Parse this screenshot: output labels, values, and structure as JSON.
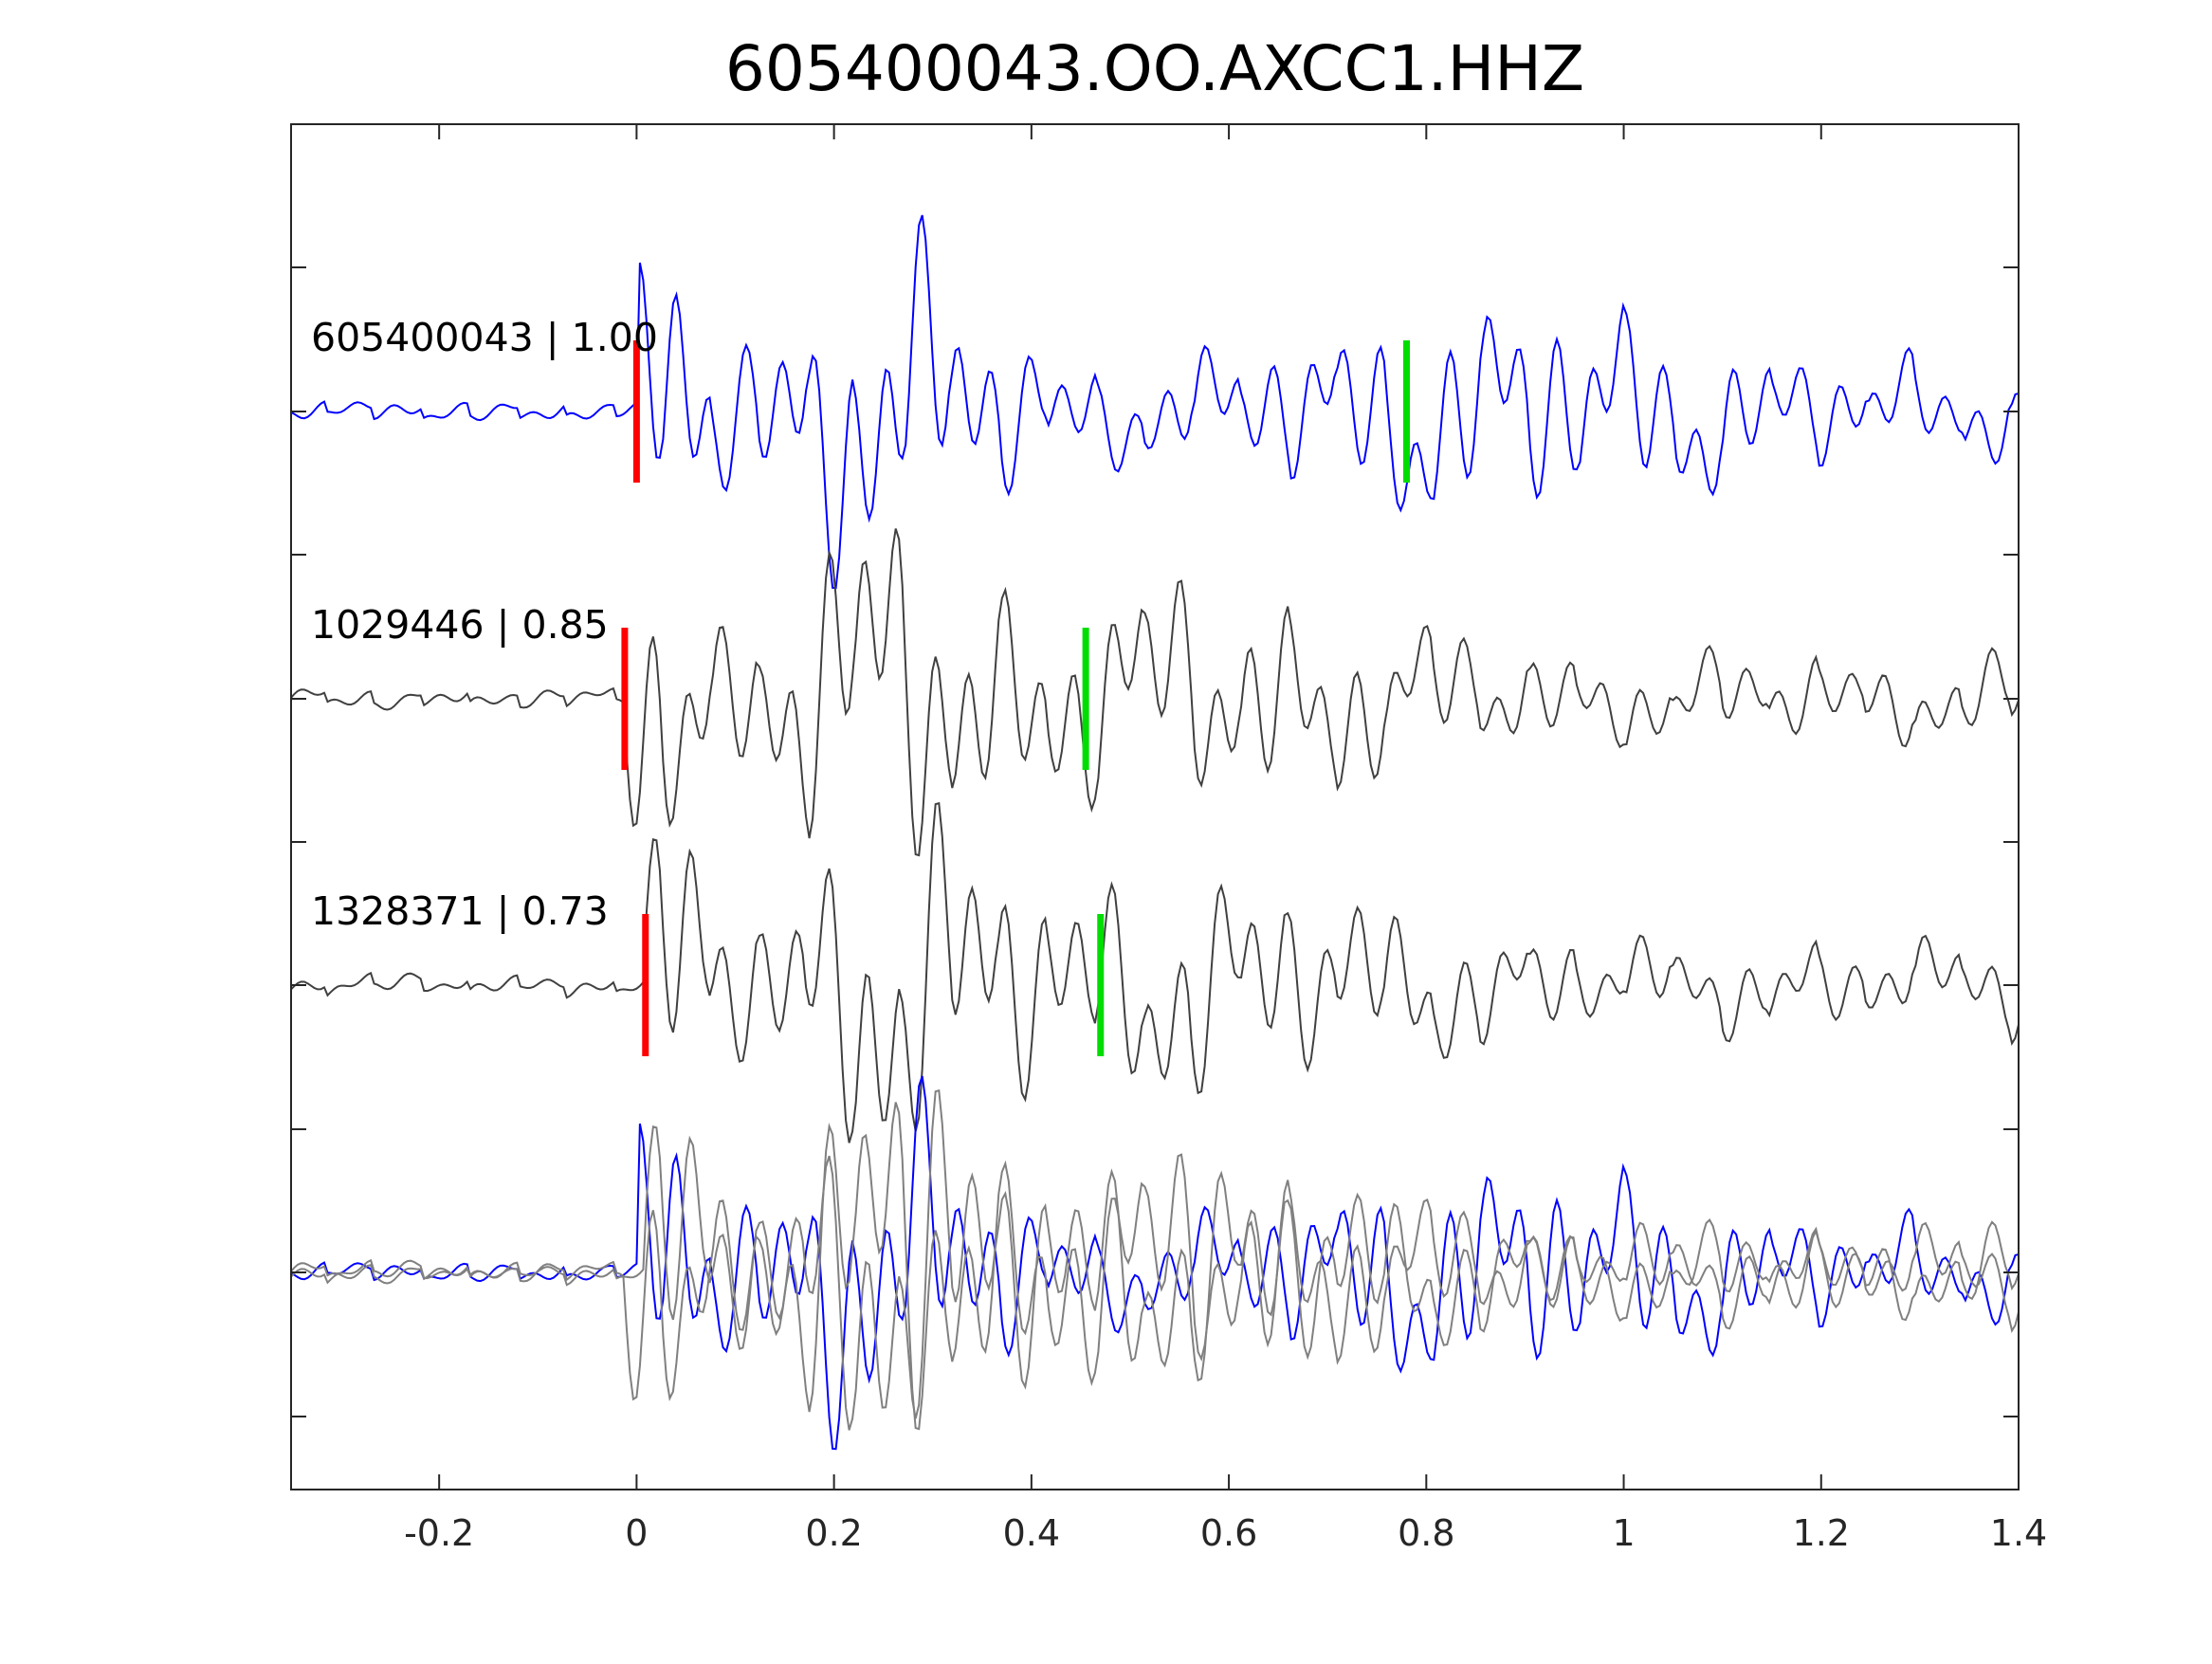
{
  "chart_data": {
    "type": "line",
    "title": "605400043.OO.AXCC1.HHZ",
    "xlabel": "",
    "ylabel": "",
    "xlim": [
      -0.35,
      1.4
    ],
    "xticks": [
      -0.2,
      0,
      0.2,
      0.4,
      0.6,
      0.8,
      1,
      1.2,
      1.4
    ],
    "xtick_labels": [
      "-0.2",
      "0",
      "0.2",
      "0.4",
      "0.6",
      "0.8",
      "1",
      "1.2",
      "1.4"
    ],
    "grid": false,
    "traces": [
      {
        "label": "605400043 | 1.00",
        "color": "#0000ff",
        "p_pick": 0.0,
        "s_pick": 0.78
      },
      {
        "label": "1029446 | 0.85",
        "color": "#404040",
        "p_pick": -0.012,
        "s_pick": 0.455
      },
      {
        "label": "1328371 | 0.73",
        "color": "#404040",
        "p_pick": 0.009,
        "s_pick": 0.47
      }
    ],
    "overlay": {
      "series": [
        {
          "color": "#0000ff"
        },
        {
          "color": "#808080"
        },
        {
          "color": "#808080"
        }
      ]
    },
    "pick_colors": {
      "p": "#ff0000",
      "s": "#00dd00"
    }
  }
}
